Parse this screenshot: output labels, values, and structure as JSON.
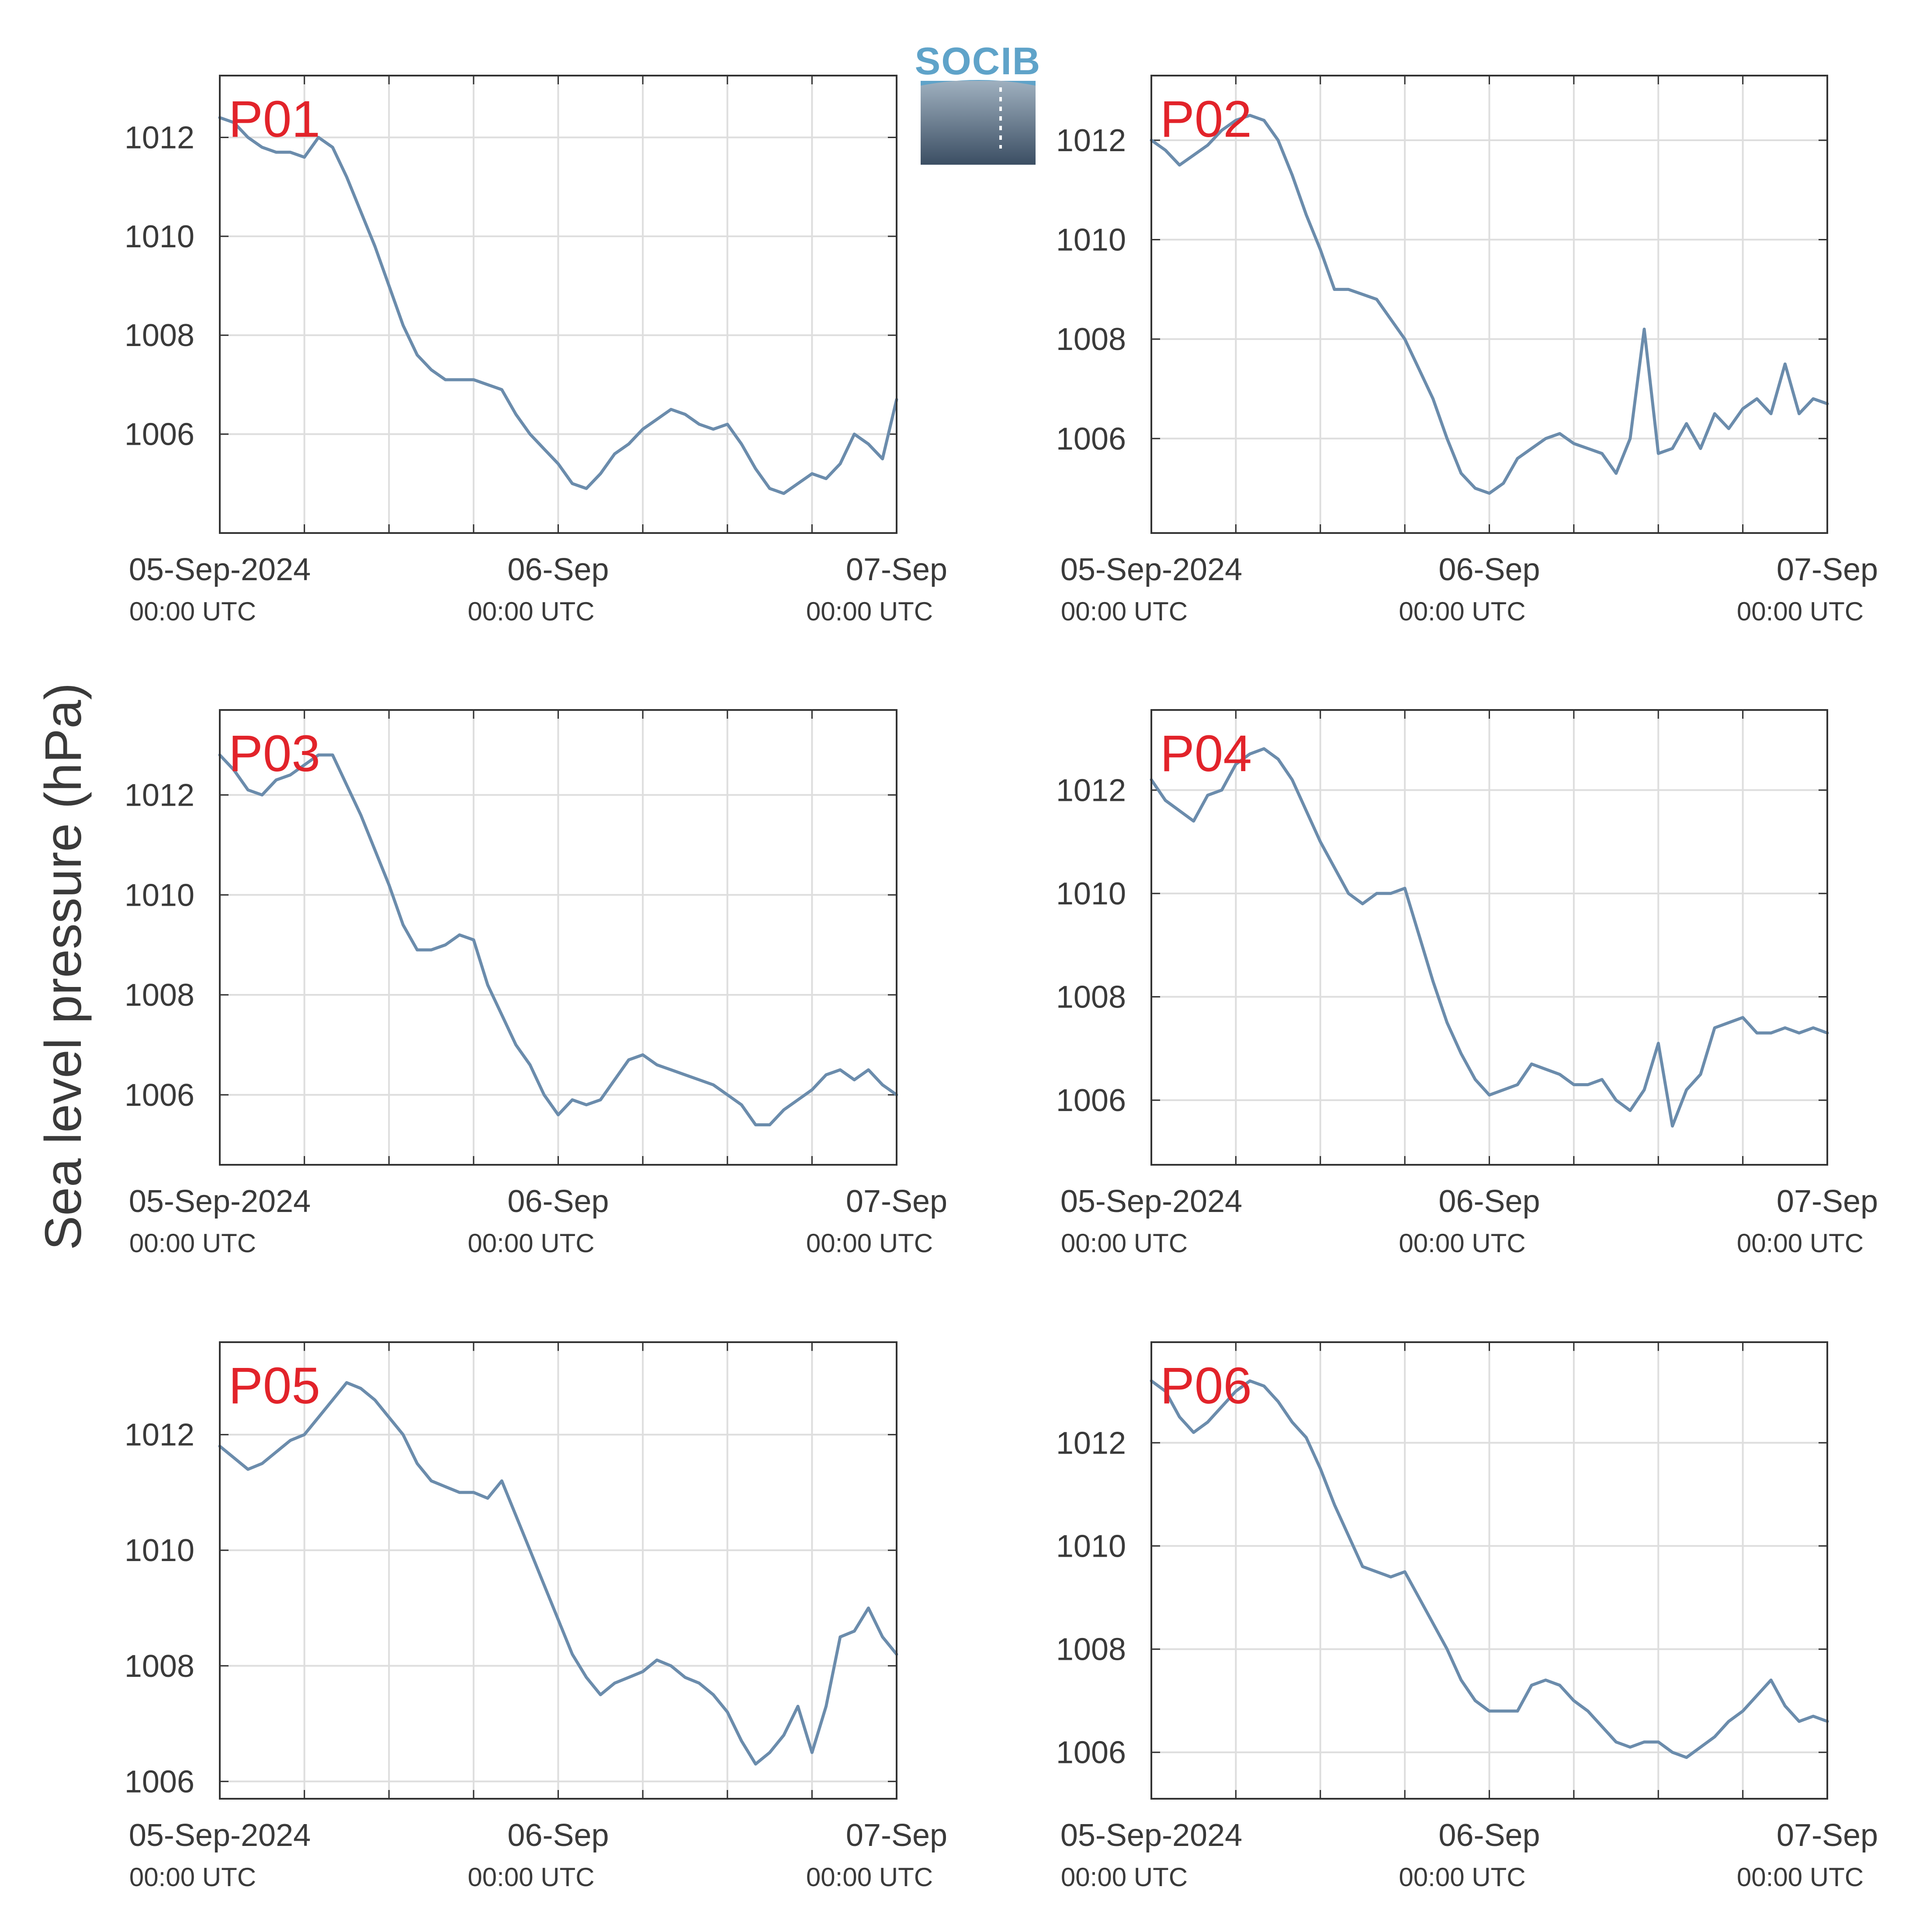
{
  "figure": {
    "ylabel": "Sea level pressure (hPa)",
    "logo_text": "SOCIB",
    "colors": {
      "line": "#6b8cac",
      "label": "#e2232a",
      "grid": "#dedede",
      "axis": "#333333"
    }
  },
  "chart_data": [
    {
      "type": "line",
      "label": "P01",
      "xlim": [
        0,
        48
      ],
      "ylim": [
        1004.0,
        1013.25
      ],
      "yticks": [
        1006,
        1008,
        1010,
        1012
      ],
      "xticks": [
        0,
        24,
        48
      ],
      "xticklabels": [
        "05-Sep-2024",
        "06-Sep",
        "07-Sep"
      ],
      "xticksublabels": [
        "00:00 UTC",
        "00:00 UTC",
        "00:00 UTC"
      ],
      "series": [
        {
          "x_unit": "hours since 05-Sep-2024 00:00 UTC",
          "x": [
            0,
            1,
            2,
            3,
            4,
            5,
            6,
            7,
            8,
            9,
            10,
            11,
            12,
            13,
            14,
            15,
            16,
            17,
            18,
            19,
            20,
            21,
            22,
            23,
            24,
            25,
            26,
            27,
            28,
            29,
            30,
            31,
            32,
            33,
            34,
            35,
            36,
            37,
            38,
            39,
            40,
            41,
            42,
            43,
            44,
            45,
            46,
            47,
            48
          ],
          "y": [
            1012.4,
            1012.3,
            1012.0,
            1011.8,
            1011.7,
            1011.7,
            1011.6,
            1012.0,
            1011.8,
            1011.2,
            1010.5,
            1009.8,
            1009.0,
            1008.2,
            1007.6,
            1007.3,
            1007.1,
            1007.1,
            1007.1,
            1007.0,
            1006.9,
            1006.4,
            1006.0,
            1005.7,
            1005.4,
            1005.0,
            1004.9,
            1005.2,
            1005.6,
            1005.8,
            1006.1,
            1006.3,
            1006.5,
            1006.4,
            1006.2,
            1006.1,
            1006.2,
            1005.8,
            1005.3,
            1004.9,
            1004.8,
            1005.0,
            1005.2,
            1005.1,
            1005.4,
            1006.0,
            1005.8,
            1005.5,
            1006.7
          ]
        }
      ]
    },
    {
      "type": "line",
      "label": "P02",
      "xlim": [
        0,
        48
      ],
      "ylim": [
        1004.1,
        1013.3
      ],
      "yticks": [
        1006,
        1008,
        1010,
        1012
      ],
      "xticks": [
        0,
        24,
        48
      ],
      "xticklabels": [
        "05-Sep-2024",
        "06-Sep",
        "07-Sep"
      ],
      "xticksublabels": [
        "00:00 UTC",
        "00:00 UTC",
        "00:00 UTC"
      ],
      "series": [
        {
          "x_unit": "hours since 05-Sep-2024 00:00 UTC",
          "x": [
            0,
            1,
            2,
            3,
            4,
            5,
            6,
            7,
            8,
            9,
            10,
            11,
            12,
            13,
            14,
            15,
            16,
            17,
            18,
            19,
            20,
            21,
            22,
            23,
            24,
            25,
            26,
            27,
            28,
            29,
            30,
            31,
            32,
            33,
            34,
            35,
            36,
            37,
            38,
            39,
            40,
            41,
            42,
            43,
            44,
            45,
            46,
            47,
            48
          ],
          "y": [
            1012.0,
            1011.8,
            1011.5,
            1011.7,
            1011.9,
            1012.2,
            1012.4,
            1012.5,
            1012.4,
            1012.0,
            1011.3,
            1010.5,
            1009.8,
            1009.0,
            1009.0,
            1008.9,
            1008.8,
            1008.4,
            1008.0,
            1007.4,
            1006.8,
            1006.0,
            1005.3,
            1005.0,
            1004.9,
            1005.1,
            1005.6,
            1005.8,
            1006.0,
            1006.1,
            1005.9,
            1005.8,
            1005.7,
            1005.3,
            1006.0,
            1008.2,
            1005.7,
            1005.8,
            1006.3,
            1005.8,
            1006.5,
            1006.2,
            1006.6,
            1006.8,
            1006.5,
            1007.5,
            1006.5,
            1006.8,
            1006.7
          ]
        }
      ]
    },
    {
      "type": "line",
      "label": "P03",
      "xlim": [
        0,
        48
      ],
      "ylim": [
        1004.6,
        1013.7
      ],
      "yticks": [
        1006,
        1008,
        1010,
        1012
      ],
      "xticks": [
        0,
        24,
        48
      ],
      "xticklabels": [
        "05-Sep-2024",
        "06-Sep",
        "07-Sep"
      ],
      "xticksublabels": [
        "00:00 UTC",
        "00:00 UTC",
        "00:00 UTC"
      ],
      "series": [
        {
          "x_unit": "hours since 05-Sep-2024 00:00 UTC",
          "x": [
            0,
            1,
            2,
            3,
            4,
            5,
            6,
            7,
            8,
            9,
            10,
            11,
            12,
            13,
            14,
            15,
            16,
            17,
            18,
            19,
            20,
            21,
            22,
            23,
            24,
            25,
            26,
            27,
            28,
            29,
            30,
            31,
            32,
            33,
            34,
            35,
            36,
            37,
            38,
            39,
            40,
            41,
            42,
            43,
            44,
            45,
            46,
            47,
            48
          ],
          "y": [
            1012.8,
            1012.5,
            1012.1,
            1012.0,
            1012.3,
            1012.4,
            1012.6,
            1012.8,
            1012.8,
            1012.2,
            1011.6,
            1010.9,
            1010.2,
            1009.4,
            1008.9,
            1008.9,
            1009.0,
            1009.2,
            1009.1,
            1008.2,
            1007.6,
            1007.0,
            1006.6,
            1006.0,
            1005.6,
            1005.9,
            1005.8,
            1005.9,
            1006.3,
            1006.7,
            1006.8,
            1006.6,
            1006.5,
            1006.4,
            1006.3,
            1006.2,
            1006.0,
            1005.8,
            1005.4,
            1005.4,
            1005.7,
            1005.9,
            1006.1,
            1006.4,
            1006.5,
            1006.3,
            1006.5,
            1006.2,
            1006.0
          ]
        }
      ]
    },
    {
      "type": "line",
      "label": "P04",
      "xlim": [
        0,
        48
      ],
      "ylim": [
        1004.75,
        1013.55
      ],
      "yticks": [
        1006,
        1008,
        1010,
        1012
      ],
      "xticks": [
        0,
        24,
        48
      ],
      "xticklabels": [
        "05-Sep-2024",
        "06-Sep",
        "07-Sep"
      ],
      "xticksublabels": [
        "00:00 UTC",
        "00:00 UTC",
        "00:00 UTC"
      ],
      "series": [
        {
          "x_unit": "hours since 05-Sep-2024 00:00 UTC",
          "x": [
            0,
            1,
            2,
            3,
            4,
            5,
            6,
            7,
            8,
            9,
            10,
            11,
            12,
            13,
            14,
            15,
            16,
            17,
            18,
            19,
            20,
            21,
            22,
            23,
            24,
            25,
            26,
            27,
            28,
            29,
            30,
            31,
            32,
            33,
            34,
            35,
            36,
            37,
            38,
            39,
            40,
            41,
            42,
            43,
            44,
            45,
            46,
            47,
            48
          ],
          "y": [
            1012.2,
            1011.8,
            1011.6,
            1011.4,
            1011.9,
            1012.0,
            1012.5,
            1012.7,
            1012.8,
            1012.6,
            1012.2,
            1011.6,
            1011.0,
            1010.5,
            1010.0,
            1009.8,
            1010.0,
            1010.0,
            1010.1,
            1009.2,
            1008.3,
            1007.5,
            1006.9,
            1006.4,
            1006.1,
            1006.2,
            1006.3,
            1006.7,
            1006.6,
            1006.5,
            1006.3,
            1006.3,
            1006.4,
            1006.0,
            1005.8,
            1006.2,
            1007.1,
            1005.5,
            1006.2,
            1006.5,
            1007.4,
            1007.5,
            1007.6,
            1007.3,
            1007.3,
            1007.4,
            1007.3,
            1007.4,
            1007.3
          ]
        }
      ]
    },
    {
      "type": "line",
      "label": "P05",
      "xlim": [
        0,
        48
      ],
      "ylim": [
        1005.7,
        1013.6
      ],
      "yticks": [
        1006,
        1008,
        1010,
        1012
      ],
      "xticks": [
        0,
        24,
        48
      ],
      "xticklabels": [
        "05-Sep-2024",
        "06-Sep",
        "07-Sep"
      ],
      "xticksublabels": [
        "00:00 UTC",
        "00:00 UTC",
        "00:00 UTC"
      ],
      "series": [
        {
          "x_unit": "hours since 05-Sep-2024 00:00 UTC",
          "x": [
            0,
            1,
            2,
            3,
            4,
            5,
            6,
            7,
            8,
            9,
            10,
            11,
            12,
            13,
            14,
            15,
            16,
            17,
            18,
            19,
            20,
            21,
            22,
            23,
            24,
            25,
            26,
            27,
            28,
            29,
            30,
            31,
            32,
            33,
            34,
            35,
            36,
            37,
            38,
            39,
            40,
            41,
            42,
            43,
            44,
            45,
            46,
            47,
            48
          ],
          "y": [
            1011.8,
            1011.6,
            1011.4,
            1011.5,
            1011.7,
            1011.9,
            1012.0,
            1012.3,
            1012.6,
            1012.9,
            1012.8,
            1012.6,
            1012.3,
            1012.0,
            1011.5,
            1011.2,
            1011.1,
            1011.0,
            1011.0,
            1010.9,
            1011.2,
            1010.6,
            1010.0,
            1009.4,
            1008.8,
            1008.2,
            1007.8,
            1007.5,
            1007.7,
            1007.8,
            1007.9,
            1008.1,
            1008.0,
            1007.8,
            1007.7,
            1007.5,
            1007.2,
            1006.7,
            1006.3,
            1006.5,
            1006.8,
            1007.3,
            1006.5,
            1007.3,
            1008.5,
            1008.6,
            1009.0,
            1008.5,
            1008.2
          ]
        }
      ]
    },
    {
      "type": "line",
      "label": "P06",
      "xlim": [
        0,
        48
      ],
      "ylim": [
        1005.1,
        1013.95
      ],
      "yticks": [
        1006,
        1008,
        1010,
        1012
      ],
      "xticks": [
        0,
        24,
        48
      ],
      "xticklabels": [
        "05-Sep-2024",
        "06-Sep",
        "07-Sep"
      ],
      "xticksublabels": [
        "00:00 UTC",
        "00:00 UTC",
        "00:00 UTC"
      ],
      "series": [
        {
          "x_unit": "hours since 05-Sep-2024 00:00 UTC",
          "x": [
            0,
            1,
            2,
            3,
            4,
            5,
            6,
            7,
            8,
            9,
            10,
            11,
            12,
            13,
            14,
            15,
            16,
            17,
            18,
            19,
            20,
            21,
            22,
            23,
            24,
            25,
            26,
            27,
            28,
            29,
            30,
            31,
            32,
            33,
            34,
            35,
            36,
            37,
            38,
            39,
            40,
            41,
            42,
            43,
            44,
            45,
            46,
            47,
            48
          ],
          "y": [
            1013.2,
            1013.0,
            1012.5,
            1012.2,
            1012.4,
            1012.7,
            1013.0,
            1013.2,
            1013.1,
            1012.8,
            1012.4,
            1012.1,
            1011.5,
            1010.8,
            1010.2,
            1009.6,
            1009.5,
            1009.4,
            1009.5,
            1009.0,
            1008.5,
            1008.0,
            1007.4,
            1007.0,
            1006.8,
            1006.8,
            1006.8,
            1007.3,
            1007.4,
            1007.3,
            1007.0,
            1006.8,
            1006.5,
            1006.2,
            1006.1,
            1006.2,
            1006.2,
            1006.0,
            1005.9,
            1006.1,
            1006.3,
            1006.6,
            1006.8,
            1007.1,
            1007.4,
            1006.9,
            1006.6,
            1006.7,
            1006.6
          ]
        }
      ]
    }
  ]
}
